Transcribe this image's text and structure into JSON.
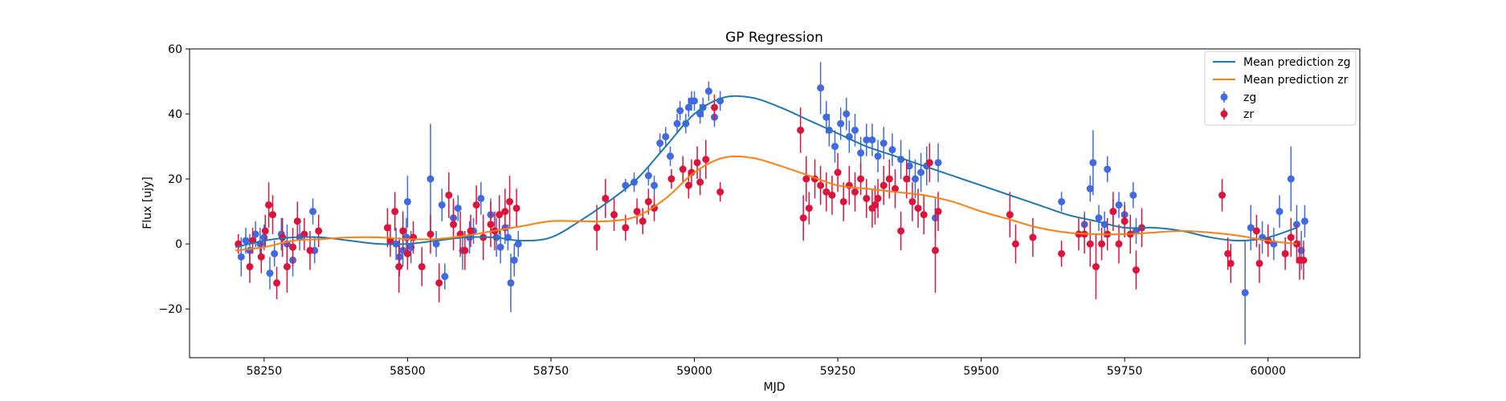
{
  "chart_data": {
    "type": "scatter",
    "title": "GP Regression",
    "xlabel": "MJD",
    "ylabel": "Flux [ujy]",
    "xlim": [
      58120,
      60160
    ],
    "ylim": [
      -35,
      60
    ],
    "xticks": [
      58250,
      58500,
      58750,
      59000,
      59250,
      59500,
      59750,
      60000
    ],
    "yticks": [
      -20,
      0,
      20,
      40,
      60
    ],
    "grid": false,
    "legend_position": "top-right",
    "colors": {
      "mean_zg": "#1f77b4",
      "mean_zr": "#ff7f0e",
      "zg": "#4169e1",
      "zr": "#dc143c"
    },
    "legend": [
      {
        "name": "Mean prediction zg",
        "kind": "line",
        "color": "#1f77b4"
      },
      {
        "name": "Mean prediction zr",
        "kind": "line",
        "color": "#ff7f0e"
      },
      {
        "name": "zg",
        "kind": "errorbar",
        "color": "#4169e1"
      },
      {
        "name": "zr",
        "kind": "errorbar",
        "color": "#dc143c"
      }
    ],
    "lines": [
      {
        "name": "Mean prediction zg",
        "color": "#1f77b4",
        "x": [
          58200,
          58250,
          58300,
          58350,
          58400,
          58450,
          58500,
          58550,
          58600,
          58650,
          58700,
          58750,
          58800,
          58850,
          58900,
          58950,
          59000,
          59050,
          59100,
          59150,
          59200,
          59250,
          59300,
          59350,
          59400,
          59450,
          59500,
          59550,
          59600,
          59650,
          59700,
          59750,
          59800,
          59850,
          59900,
          59950,
          60000,
          60050
        ],
        "y": [
          -1,
          1,
          2,
          2,
          1,
          0,
          0,
          1,
          2,
          2,
          1,
          2,
          7,
          13,
          20,
          30,
          40,
          45,
          45,
          42,
          38,
          34,
          30,
          27,
          24,
          21,
          18,
          15,
          12,
          9,
          7,
          5,
          5,
          4,
          2,
          1,
          2,
          5
        ]
      },
      {
        "name": "Mean prediction zr",
        "color": "#ff7f0e",
        "x": [
          58200,
          58250,
          58300,
          58350,
          58400,
          58450,
          58500,
          58550,
          58600,
          58650,
          58700,
          58750,
          58800,
          58850,
          58900,
          58950,
          59000,
          59050,
          59100,
          59150,
          59200,
          59250,
          59300,
          59350,
          59400,
          59450,
          59500,
          59550,
          59600,
          59650,
          59700,
          59750,
          59800,
          59850,
          59900,
          59950,
          60000,
          60050
        ],
        "y": [
          -2,
          -1,
          1,
          1.5,
          2,
          2,
          1.5,
          1.5,
          2.5,
          4,
          5.5,
          7,
          7,
          7,
          8.5,
          14,
          22,
          26.5,
          26.5,
          24,
          21,
          18,
          17,
          16,
          15,
          13,
          10,
          7.5,
          5,
          3.5,
          3,
          3,
          3.5,
          4,
          3.5,
          2.5,
          1,
          0
        ]
      }
    ],
    "series": [
      {
        "name": "zg",
        "color": "#4169e1",
        "points": [
          [
            58210,
            -4,
            6
          ],
          [
            58218,
            1,
            4
          ],
          [
            58225,
            -2,
            5
          ],
          [
            58235,
            3,
            4
          ],
          [
            58243,
            0,
            5
          ],
          [
            58250,
            2,
            4
          ],
          [
            58260,
            -9,
            5
          ],
          [
            58268,
            -3,
            4
          ],
          [
            58280,
            3,
            5
          ],
          [
            58290,
            0,
            6
          ],
          [
            58300,
            -5,
            5
          ],
          [
            58312,
            2,
            4
          ],
          [
            58335,
            10,
            4
          ],
          [
            58338,
            -2,
            4
          ],
          [
            58480,
            0,
            5
          ],
          [
            58486,
            -4,
            6
          ],
          [
            58492,
            -2,
            5
          ],
          [
            58498,
            2,
            6
          ],
          [
            58500,
            13,
            8
          ],
          [
            58506,
            -1,
            5
          ],
          [
            58540,
            20,
            17
          ],
          [
            58550,
            0,
            4
          ],
          [
            58560,
            12,
            5
          ],
          [
            58565,
            -10,
            4
          ],
          [
            58580,
            8,
            5
          ],
          [
            58588,
            11,
            4
          ],
          [
            58596,
            -2,
            6
          ],
          [
            58608,
            2,
            5
          ],
          [
            58615,
            4,
            4
          ],
          [
            58628,
            14,
            5
          ],
          [
            58645,
            9,
            5
          ],
          [
            58655,
            2,
            6
          ],
          [
            58662,
            -1,
            5
          ],
          [
            58670,
            5,
            5
          ],
          [
            58675,
            2,
            4
          ],
          [
            58680,
            -12,
            9
          ],
          [
            58686,
            -5,
            5
          ],
          [
            58693,
            0,
            4
          ],
          [
            58880,
            18,
            2
          ],
          [
            58895,
            19,
            3
          ],
          [
            58920,
            21,
            3
          ],
          [
            58930,
            18,
            3
          ],
          [
            58940,
            31,
            3
          ],
          [
            58950,
            33,
            3
          ],
          [
            58958,
            27,
            3
          ],
          [
            58970,
            37,
            3
          ],
          [
            58975,
            41,
            3
          ],
          [
            58985,
            37,
            3
          ],
          [
            58990,
            42,
            3
          ],
          [
            58995,
            44,
            3
          ],
          [
            59000,
            44,
            3
          ],
          [
            59010,
            40,
            3
          ],
          [
            59015,
            42,
            3
          ],
          [
            59025,
            47,
            3
          ],
          [
            59035,
            39,
            3
          ],
          [
            59045,
            44,
            3
          ],
          [
            59220,
            48,
            8
          ],
          [
            59230,
            39,
            5
          ],
          [
            59235,
            35,
            5
          ],
          [
            59245,
            30,
            5
          ],
          [
            59255,
            37,
            5
          ],
          [
            59265,
            40,
            5
          ],
          [
            59270,
            33,
            5
          ],
          [
            59280,
            35,
            5
          ],
          [
            59290,
            28,
            5
          ],
          [
            59300,
            32,
            5
          ],
          [
            59310,
            32,
            5
          ],
          [
            59320,
            27,
            5
          ],
          [
            59330,
            31,
            5
          ],
          [
            59345,
            29,
            5
          ],
          [
            59360,
            26,
            6
          ],
          [
            59375,
            24,
            5
          ],
          [
            59385,
            20,
            6
          ],
          [
            59395,
            22,
            6
          ],
          [
            59405,
            24,
            6
          ],
          [
            59420,
            8,
            6
          ],
          [
            59425,
            25,
            6
          ],
          [
            59640,
            13,
            3
          ],
          [
            59680,
            6,
            4
          ],
          [
            59690,
            17,
            4
          ],
          [
            59695,
            25,
            10
          ],
          [
            59705,
            8,
            4
          ],
          [
            59715,
            6,
            4
          ],
          [
            59720,
            23,
            4
          ],
          [
            59730,
            10,
            4
          ],
          [
            59740,
            12,
            4
          ],
          [
            59750,
            9,
            4
          ],
          [
            59765,
            15,
            4
          ],
          [
            59770,
            4,
            4
          ],
          [
            59960,
            -15,
            16
          ],
          [
            59970,
            5,
            7
          ],
          [
            59990,
            2,
            5
          ],
          [
            60010,
            0,
            5
          ],
          [
            60020,
            10,
            5
          ],
          [
            60040,
            20,
            10
          ],
          [
            60050,
            6,
            6
          ],
          [
            60058,
            -2,
            6
          ],
          [
            60064,
            7,
            5
          ]
        ]
      },
      {
        "name": "zr",
        "color": "#dc143c",
        "points": [
          [
            58205,
            0,
            3
          ],
          [
            58225,
            -7,
            5
          ],
          [
            58230,
            1,
            4
          ],
          [
            58245,
            -4,
            5
          ],
          [
            58252,
            4,
            5
          ],
          [
            58258,
            12,
            7
          ],
          [
            58265,
            9,
            6
          ],
          [
            58272,
            -12,
            5
          ],
          [
            58282,
            2,
            6
          ],
          [
            58290,
            -7,
            8
          ],
          [
            58300,
            -1,
            6
          ],
          [
            58308,
            7,
            6
          ],
          [
            58320,
            3,
            5
          ],
          [
            58330,
            -2,
            6
          ],
          [
            58345,
            4,
            5
          ],
          [
            58465,
            5,
            6
          ],
          [
            58470,
            1,
            5
          ],
          [
            58478,
            10,
            6
          ],
          [
            58485,
            -7,
            8
          ],
          [
            58492,
            4,
            6
          ],
          [
            58500,
            -3,
            5
          ],
          [
            58510,
            2,
            5
          ],
          [
            58525,
            -7,
            6
          ],
          [
            58540,
            3,
            6
          ],
          [
            58555,
            -12,
            6
          ],
          [
            58572,
            15,
            7
          ],
          [
            58580,
            6,
            8
          ],
          [
            58592,
            3,
            7
          ],
          [
            58600,
            -2,
            6
          ],
          [
            58610,
            4,
            5
          ],
          [
            58620,
            12,
            6
          ],
          [
            58632,
            2,
            7
          ],
          [
            58645,
            6,
            7
          ],
          [
            58652,
            4,
            6
          ],
          [
            58660,
            9,
            6
          ],
          [
            58670,
            10,
            7
          ],
          [
            58678,
            13,
            8
          ],
          [
            58690,
            11,
            6
          ],
          [
            58830,
            5,
            7
          ],
          [
            58845,
            14,
            6
          ],
          [
            58860,
            9,
            5
          ],
          [
            58880,
            5,
            4
          ],
          [
            58900,
            10,
            4
          ],
          [
            58910,
            7,
            4
          ],
          [
            58920,
            13,
            4
          ],
          [
            58930,
            11,
            4
          ],
          [
            58960,
            20,
            3
          ],
          [
            58980,
            23,
            4
          ],
          [
            58990,
            18,
            4
          ],
          [
            58995,
            22,
            4
          ],
          [
            59005,
            25,
            5
          ],
          [
            59010,
            19,
            4
          ],
          [
            59020,
            26,
            6
          ],
          [
            59035,
            42,
            4
          ],
          [
            59045,
            16,
            3
          ],
          [
            59185,
            35,
            7
          ],
          [
            59190,
            8,
            7
          ],
          [
            59195,
            20,
            7
          ],
          [
            59200,
            11,
            5
          ],
          [
            59210,
            20,
            6
          ],
          [
            59220,
            18,
            6
          ],
          [
            59230,
            16,
            6
          ],
          [
            59240,
            15,
            6
          ],
          [
            59250,
            22,
            6
          ],
          [
            59260,
            13,
            6
          ],
          [
            59270,
            18,
            6
          ],
          [
            59280,
            16,
            6
          ],
          [
            59290,
            20,
            5
          ],
          [
            59300,
            14,
            6
          ],
          [
            59310,
            11,
            6
          ],
          [
            59315,
            12,
            6
          ],
          [
            59320,
            14,
            6
          ],
          [
            59330,
            18,
            6
          ],
          [
            59340,
            20,
            6
          ],
          [
            59350,
            17,
            6
          ],
          [
            59360,
            4,
            6
          ],
          [
            59370,
            20,
            6
          ],
          [
            59380,
            13,
            6
          ],
          [
            59390,
            11,
            6
          ],
          [
            59400,
            9,
            6
          ],
          [
            59410,
            25,
            6
          ],
          [
            59420,
            -2,
            13
          ],
          [
            59425,
            10,
            6
          ],
          [
            59550,
            9,
            7
          ],
          [
            59560,
            0,
            6
          ],
          [
            59590,
            2,
            6
          ],
          [
            59640,
            -3,
            4
          ],
          [
            59670,
            3,
            5
          ],
          [
            59680,
            3,
            6
          ],
          [
            59690,
            0,
            7
          ],
          [
            59700,
            -7,
            10
          ],
          [
            59710,
            0,
            5
          ],
          [
            59720,
            3,
            5
          ],
          [
            59730,
            10,
            6
          ],
          [
            59740,
            0,
            6
          ],
          [
            59750,
            7,
            5
          ],
          [
            59760,
            3,
            6
          ],
          [
            59770,
            -8,
            6
          ],
          [
            59780,
            5,
            6
          ],
          [
            59920,
            15,
            5
          ],
          [
            59930,
            -3,
            5
          ],
          [
            59935,
            -6,
            6
          ],
          [
            59980,
            4,
            5
          ],
          [
            59985,
            -6,
            6
          ],
          [
            60000,
            1,
            5
          ],
          [
            60030,
            -3,
            5
          ],
          [
            60040,
            2,
            6
          ],
          [
            60050,
            0,
            6
          ],
          [
            60055,
            -5,
            6
          ],
          [
            60062,
            -5,
            6
          ]
        ]
      }
    ]
  }
}
